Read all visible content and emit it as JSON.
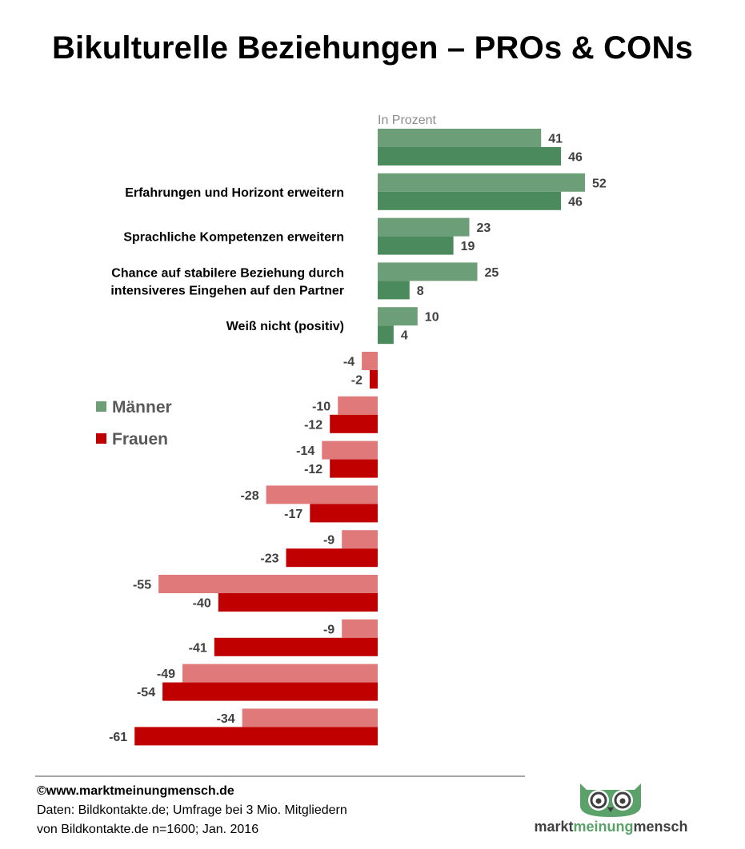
{
  "title": "Bikulturelle Beziehungen – PROs & CONs",
  "unit_label": "In Prozent",
  "legend": [
    {
      "label": "Männer",
      "color": "#6c9e78"
    },
    {
      "label": "Frauen",
      "color": "#c00000"
    }
  ],
  "colors": {
    "men_positive": "#6c9e78",
    "women_positive": "#4b8a5c",
    "men_negative": "#e07a7a",
    "women_negative": "#c00000"
  },
  "chart_data": {
    "type": "bar",
    "orientation": "horizontal",
    "categories": [
      "",
      "Erfahrungen und Horizont erweitern",
      "Sprachliche Kompetenzen erweitern",
      "Chance auf stabilere Beziehung durch\nintensiveres Eingehen auf den Partner",
      "Weiß nicht (positiv)",
      "",
      "",
      "",
      "",
      "",
      "",
      "",
      "",
      ""
    ],
    "series": [
      {
        "name": "Männer",
        "values": [
          41,
          52,
          23,
          25,
          10,
          -4,
          -10,
          -14,
          -28,
          -9,
          -55,
          -9,
          -49,
          -34
        ]
      },
      {
        "name": "Frauen",
        "values": [
          46,
          46,
          19,
          8,
          4,
          -2,
          -12,
          -12,
          -17,
          -23,
          -40,
          -41,
          -54,
          -61
        ]
      }
    ],
    "xlim": [
      -61,
      52
    ],
    "grid": false,
    "legend_position": "left-middle"
  },
  "footer": {
    "copyright": "©www.marktmeinungmensch.de",
    "source_line1": "Daten: Bildkontakte.de; Umfrage bei 3 Mio. Mitgliedern",
    "source_line2": "von Bildkontakte.de  n=1600; Jan. 2016"
  },
  "logo": {
    "word1": "markt",
    "word2": "meinung",
    "word3": "mensch"
  }
}
